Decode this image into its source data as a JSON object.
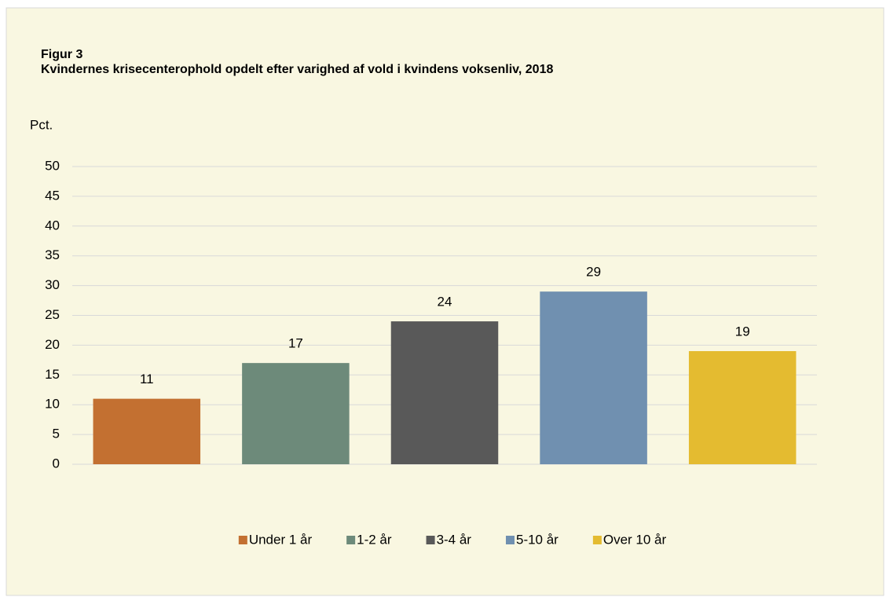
{
  "chart_data": {
    "type": "bar",
    "title": "Figur 3",
    "subtitle": "Kvindernes krisecenterophold opdelt efter varighed af vold i kvindens voksenliv, 2018",
    "y_label": "Pct.",
    "categories": [
      "Under 1 år",
      "1-2 år",
      "3-4 år",
      "5-10 år",
      "Over 10 år"
    ],
    "values": [
      11,
      17,
      24,
      29,
      19
    ],
    "colors": [
      "#c37031",
      "#6d8a7a",
      "#595959",
      "#7090b0",
      "#e4bb30"
    ],
    "ylim": [
      0,
      50
    ],
    "yticks": [
      0,
      5,
      10,
      15,
      20,
      25,
      30,
      35,
      40,
      45,
      50
    ],
    "grid": true,
    "legend": "bottom"
  }
}
